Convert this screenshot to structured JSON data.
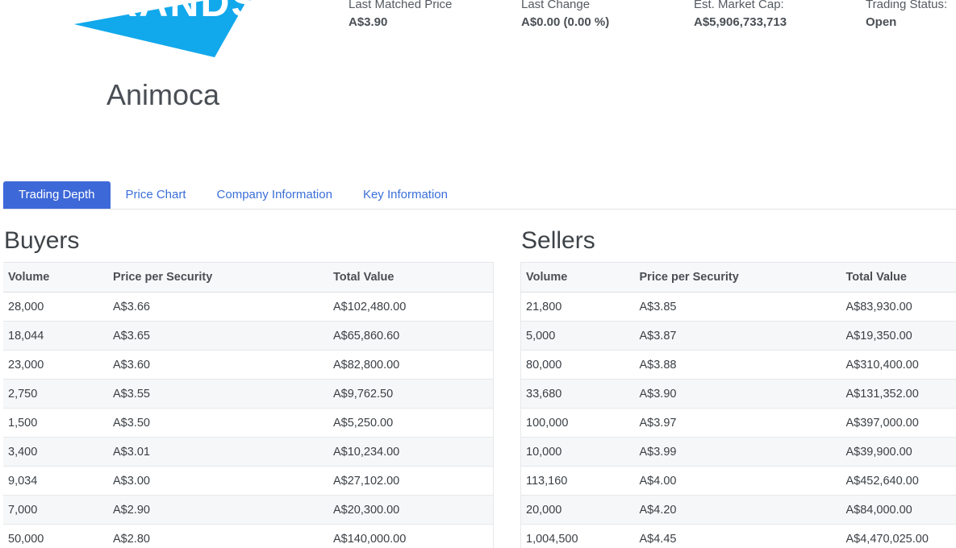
{
  "logo": {
    "text": "BRANDS",
    "color": "#12a8ec"
  },
  "company_name": "Animoca",
  "stats": [
    {
      "label": "Last Matched Price",
      "value": "A$3.90"
    },
    {
      "label": "Last Change",
      "value": "A$0.00 (0.00 %)"
    },
    {
      "label": "Est. Market Cap:",
      "value": "A$5,906,733,713"
    },
    {
      "label": "Trading Status:",
      "value": "Open"
    }
  ],
  "tabs": [
    {
      "label": "Trading Depth",
      "active": true
    },
    {
      "label": "Price Chart",
      "active": false
    },
    {
      "label": "Company Information",
      "active": false
    },
    {
      "label": "Key Information",
      "active": false
    }
  ],
  "buyers": {
    "title": "Buyers",
    "columns": [
      "Volume",
      "Price per Security",
      "Total Value"
    ],
    "rows": [
      [
        "28,000",
        "A$3.66",
        "A$102,480.00"
      ],
      [
        "18,044",
        "A$3.65",
        "A$65,860.60"
      ],
      [
        "23,000",
        "A$3.60",
        "A$82,800.00"
      ],
      [
        "2,750",
        "A$3.55",
        "A$9,762.50"
      ],
      [
        "1,500",
        "A$3.50",
        "A$5,250.00"
      ],
      [
        "3,400",
        "A$3.01",
        "A$10,234.00"
      ],
      [
        "9,034",
        "A$3.00",
        "A$27,102.00"
      ],
      [
        "7,000",
        "A$2.90",
        "A$20,300.00"
      ],
      [
        "50,000",
        "A$2.80",
        "A$140,000.00"
      ]
    ]
  },
  "sellers": {
    "title": "Sellers",
    "columns": [
      "Volume",
      "Price per Security",
      "Total Value"
    ],
    "rows": [
      [
        "21,800",
        "A$3.85",
        "A$83,930.00"
      ],
      [
        "5,000",
        "A$3.87",
        "A$19,350.00"
      ],
      [
        "80,000",
        "A$3.88",
        "A$310,400.00"
      ],
      [
        "33,680",
        "A$3.90",
        "A$131,352.00"
      ],
      [
        "100,000",
        "A$3.97",
        "A$397,000.00"
      ],
      [
        "10,000",
        "A$3.99",
        "A$39,900.00"
      ],
      [
        "113,160",
        "A$4.00",
        "A$452,640.00"
      ],
      [
        "20,000",
        "A$4.20",
        "A$84,000.00"
      ],
      [
        "1,004,500",
        "A$4.45",
        "A$4,470,025.00"
      ]
    ]
  },
  "colors": {
    "accent": "#3d68d8",
    "link": "#3a6fd8",
    "logo": "#12a8ec"
  }
}
